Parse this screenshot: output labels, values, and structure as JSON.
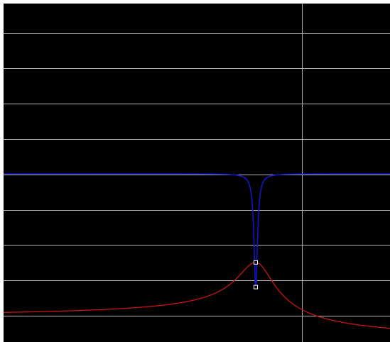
{
  "colors": {
    "background": "#000000",
    "frame": "#ffffff",
    "grid": "#b4b4b4",
    "series_magnitude": "#1414c8",
    "series_phase": "#c81414",
    "marker": "#ffffff"
  },
  "chart_data": {
    "type": "line",
    "title": "",
    "xlabel": "",
    "ylabel": "",
    "grid": true,
    "horizontal_gridlines": 9,
    "vertical_gridlines": 1,
    "resonance_frequency": 1.0,
    "series": [
      {
        "color": "#1414c8",
        "shape": "notch",
        "baseline_level": 1.0,
        "notch_depth": 0.665,
        "notch_q": 28
      },
      {
        "color": "#c81414",
        "shape": "peak",
        "left_level": 0.175,
        "peak_level": 0.48,
        "right_level": 0.045,
        "peak_q": 3.2
      }
    ],
    "markers": [
      {
        "series": "notch",
        "at": "curve_crossing"
      },
      {
        "series": "notch",
        "at": "notch_bottom"
      }
    ]
  }
}
